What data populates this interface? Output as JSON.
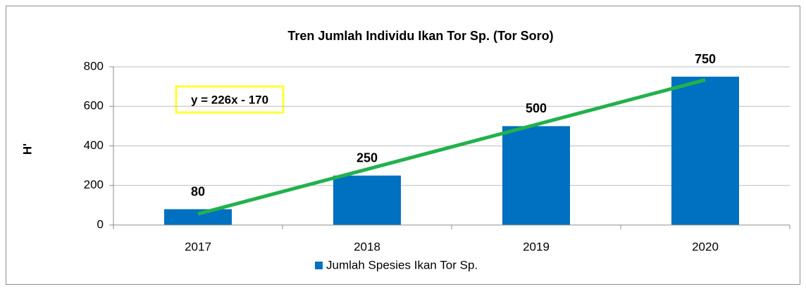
{
  "chart_data": {
    "type": "bar",
    "title": "Tren Jumlah Individu Ikan Tor Sp. (Tor Soro)",
    "y_label": "H'",
    "categories": [
      "2017",
      "2018",
      "2019",
      "2020"
    ],
    "series": [
      {
        "name": "Jumlah Spesies Ikan Tor Sp.",
        "color": "#0070c0",
        "values": [
          80,
          250,
          500,
          750
        ]
      }
    ],
    "trendline": {
      "color": "#22b14c",
      "equation": "y = 226x - 170",
      "values": [
        56,
        282,
        508,
        734
      ]
    },
    "ylim": [
      0,
      800
    ],
    "yticks": [
      0,
      200,
      400,
      600,
      800
    ],
    "grid": true,
    "legend": "bottom"
  }
}
